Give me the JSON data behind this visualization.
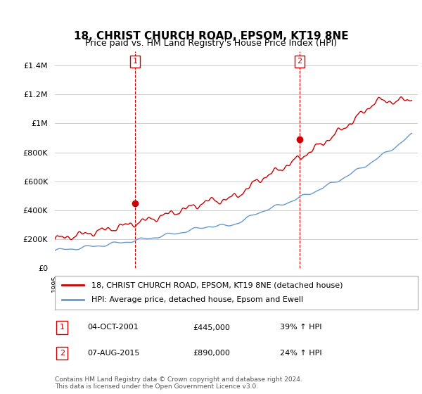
{
  "title": "18, CHRIST CHURCH ROAD, EPSOM, KT19 8NE",
  "subtitle": "Price paid vs. HM Land Registry's House Price Index (HPI)",
  "ylabel_ticks": [
    "£0",
    "£200K",
    "£400K",
    "£600K",
    "£800K",
    "£1M",
    "£1.2M",
    "£1.4M"
  ],
  "ytick_vals": [
    0,
    200000,
    400000,
    600000,
    800000,
    1000000,
    1200000,
    1400000
  ],
  "ylim": [
    0,
    1500000
  ],
  "xlim_start": 1995.0,
  "xlim_end": 2025.5,
  "red_line_color": "#cc0000",
  "blue_line_color": "#6699cc",
  "marker1_x": 2001.75,
  "marker1_y": 445000,
  "marker2_x": 2015.58,
  "marker2_y": 890000,
  "vline1_x": 2001.75,
  "vline2_x": 2015.58,
  "legend_label_red": "18, CHRIST CHURCH ROAD, EPSOM, KT19 8NE (detached house)",
  "legend_label_blue": "HPI: Average price, detached house, Epsom and Ewell",
  "note1_num": "1",
  "note1_date": "04-OCT-2001",
  "note1_price": "£445,000",
  "note1_hpi": "39% ↑ HPI",
  "note2_num": "2",
  "note2_date": "07-AUG-2015",
  "note2_price": "£890,000",
  "note2_hpi": "24% ↑ HPI",
  "footer": "Contains HM Land Registry data © Crown copyright and database right 2024.\nThis data is licensed under the Open Government Licence v3.0.",
  "background_color": "#ffffff",
  "grid_color": "#cccccc"
}
